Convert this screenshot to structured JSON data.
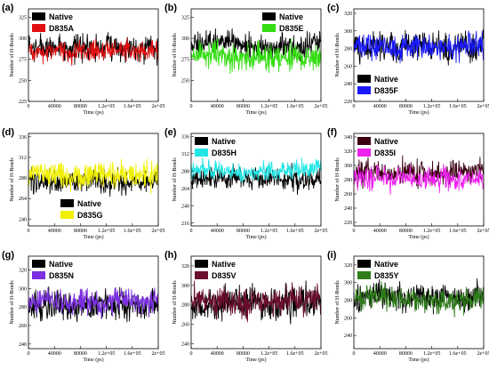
{
  "chart_data": [
    {
      "type": "line",
      "panel_label": "(a)",
      "xlabel": "Time (ps)",
      "ylabel": "Number of H-Bonds",
      "xlim": [
        0,
        200000
      ],
      "ylim": [
        225,
        335
      ],
      "xticks": [
        "0",
        "40000",
        "80000",
        "1.2e+05",
        "1.6e+05",
        "2e+05"
      ],
      "yticks": [
        225,
        250,
        275,
        300,
        325
      ],
      "legend_position": "top-left",
      "series": [
        {
          "name": "Native",
          "color": "#000000",
          "mean": 290,
          "spread": 12
        },
        {
          "name": "D835A",
          "color": "#e01010",
          "mean": 285,
          "spread": 9
        }
      ]
    },
    {
      "type": "line",
      "panel_label": "(b)",
      "xlabel": "Time (ps)",
      "ylabel": "Number of H-Bonds",
      "xlim": [
        0,
        200000
      ],
      "ylim": [
        225,
        335
      ],
      "xticks": [
        "0",
        "40000",
        "80000",
        "1.2e+05",
        "1.6e+05",
        "2e+05"
      ],
      "yticks": [
        250,
        275,
        300,
        325
      ],
      "legend_position": "top-right",
      "series": [
        {
          "name": "Native",
          "color": "#000000",
          "mean": 292,
          "spread": 11
        },
        {
          "name": "D835E",
          "color": "#33dd11",
          "mean": 280,
          "spread": 12
        }
      ]
    },
    {
      "type": "line",
      "panel_label": "(c)",
      "xlabel": "Time (ps)",
      "ylabel": "Number of H-Bonds",
      "xlim": [
        0,
        200000
      ],
      "ylim": [
        220,
        325
      ],
      "xticks": [
        "0",
        "40000",
        "80000",
        "1.2e+05",
        "1.6e+05",
        "2e+05"
      ],
      "yticks": [
        220,
        240,
        260,
        280,
        300,
        320
      ],
      "legend_position": "bottom-left",
      "series": [
        {
          "name": "Native",
          "color": "#000000",
          "mean": 282,
          "spread": 12
        },
        {
          "name": "D835F",
          "color": "#1a1aff",
          "mean": 282,
          "spread": 11
        }
      ]
    },
    {
      "type": "line",
      "panel_label": "(d)",
      "xlabel": "Time (ps)",
      "ylabel": "Number of H-Bonds",
      "xlim": [
        0,
        200000
      ],
      "ylim": [
        232,
        340
      ],
      "xticks": [
        "0",
        "40000",
        "80000",
        "1.2e+05",
        "1.6e+05",
        "2e+05"
      ],
      "yticks": [
        240,
        264,
        288,
        312,
        336
      ],
      "legend_position": "bottom-center",
      "series": [
        {
          "name": "Native",
          "color": "#000000",
          "mean": 283,
          "spread": 10
        },
        {
          "name": "D835G",
          "color": "#f0f000",
          "mean": 290,
          "spread": 11
        }
      ]
    },
    {
      "type": "line",
      "panel_label": "(e)",
      "xlabel": "Time (ps)",
      "ylabel": "Number of H-Bonds",
      "xlim": [
        0,
        200000
      ],
      "ylim": [
        212,
        340
      ],
      "xticks": [
        "0",
        "40000",
        "80000",
        "1.2e+05",
        "1.6e+05",
        "2e+05"
      ],
      "yticks": [
        216,
        240,
        264,
        288,
        312,
        336
      ],
      "legend_position": "top-left",
      "series": [
        {
          "name": "Native",
          "color": "#000000",
          "mean": 278,
          "spread": 11
        },
        {
          "name": "D835H",
          "color": "#22e5e5",
          "mean": 290,
          "spread": 10
        }
      ]
    },
    {
      "type": "line",
      "panel_label": "(f)",
      "xlabel": "Time (ps)",
      "ylabel": "Number of H-Bonds",
      "xlim": [
        0,
        200000
      ],
      "ylim": [
        215,
        345
      ],
      "xticks": [
        "0",
        "40000",
        "80000",
        "1.2e+05",
        "1.6e+05",
        "2e+05"
      ],
      "yticks": [
        220,
        240,
        260,
        280,
        300,
        320,
        340
      ],
      "legend_position": "top-left",
      "series": [
        {
          "name": "Native",
          "color": "#3a0010",
          "mean": 293,
          "spread": 13
        },
        {
          "name": "D835I",
          "color": "#ee22ee",
          "mean": 280,
          "spread": 12
        }
      ]
    },
    {
      "type": "line",
      "panel_label": "(g)",
      "xlabel": "Time (ps)",
      "ylabel": "Number of H-Bonds",
      "xlim": [
        0,
        200000
      ],
      "ylim": [
        235,
        335
      ],
      "xticks": [
        "0",
        "40000",
        "80000",
        "1.2e+05",
        "1.6e+05",
        "2e+05"
      ],
      "yticks": [
        240,
        260,
        280,
        300,
        320
      ],
      "legend_position": "top-left",
      "series": [
        {
          "name": "Native",
          "color": "#000000",
          "mean": 283,
          "spread": 12
        },
        {
          "name": "D835N",
          "color": "#7a2fe0",
          "mean": 285,
          "spread": 10
        }
      ]
    },
    {
      "type": "line",
      "panel_label": "(h)",
      "xlabel": "Time (ps)",
      "ylabel": "Number of H-Bonds",
      "xlim": [
        0,
        200000
      ],
      "ylim": [
        235,
        330
      ],
      "xticks": [
        "0",
        "40000",
        "80000",
        "1.2e+05",
        "1.6e+05",
        "2e+05"
      ],
      "yticks": [
        240,
        260,
        280,
        300,
        320
      ],
      "legend_position": "top-left",
      "series": [
        {
          "name": "Native",
          "color": "#000000",
          "mean": 280,
          "spread": 12
        },
        {
          "name": "D835V",
          "color": "#6a0f2e",
          "mean": 283,
          "spread": 11
        }
      ]
    },
    {
      "type": "line",
      "panel_label": "(i)",
      "xlabel": "Time (ps)",
      "ylabel": "Number of H-Bonds",
      "xlim": [
        0,
        200000
      ],
      "ylim": [
        225,
        330
      ],
      "xticks": [
        "0",
        "40000",
        "80000",
        "1.2e+05",
        "1.6e+05",
        "2e+05"
      ],
      "yticks": [
        240,
        260,
        280,
        300,
        320
      ],
      "legend_position": "top-left",
      "series": [
        {
          "name": "Native",
          "color": "#000000",
          "mean": 283,
          "spread": 11
        },
        {
          "name": "D835Y",
          "color": "#2e7d1a",
          "mean": 280,
          "spread": 10
        }
      ]
    }
  ]
}
